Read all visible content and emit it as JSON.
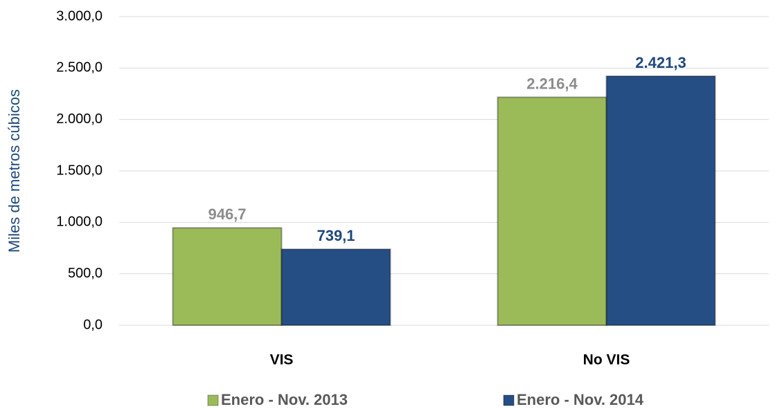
{
  "chart_data": {
    "type": "bar",
    "y_label": "Miles de metros cúbicos",
    "categories": [
      "VIS",
      "No VIS"
    ],
    "series": [
      {
        "name": "Enero - Nov. 2013",
        "color": "#9bbb59",
        "label_color": "#8c8c8c",
        "values": [
          946.7,
          2216.4
        ],
        "value_labels": [
          "946,7",
          "2.216,4"
        ]
      },
      {
        "name": "Enero - Nov. 2014",
        "color": "#254e85",
        "label_color": "#1f497d",
        "values": [
          739.1,
          2421.3
        ],
        "value_labels": [
          "739,1",
          "2.421,3"
        ]
      }
    ],
    "ylim": [
      0,
      3000
    ],
    "yticks": [
      {
        "value": 0,
        "label": "0,0"
      },
      {
        "value": 500,
        "label": "500,0"
      },
      {
        "value": 1000,
        "label": "1.000,0"
      },
      {
        "value": 1500,
        "label": "1.500,0"
      },
      {
        "value": 2000,
        "label": "2.000,0"
      },
      {
        "value": 2500,
        "label": "2.500,0"
      },
      {
        "value": 3000,
        "label": "3.000,0"
      }
    ],
    "grid": true,
    "legend": "bottom"
  }
}
